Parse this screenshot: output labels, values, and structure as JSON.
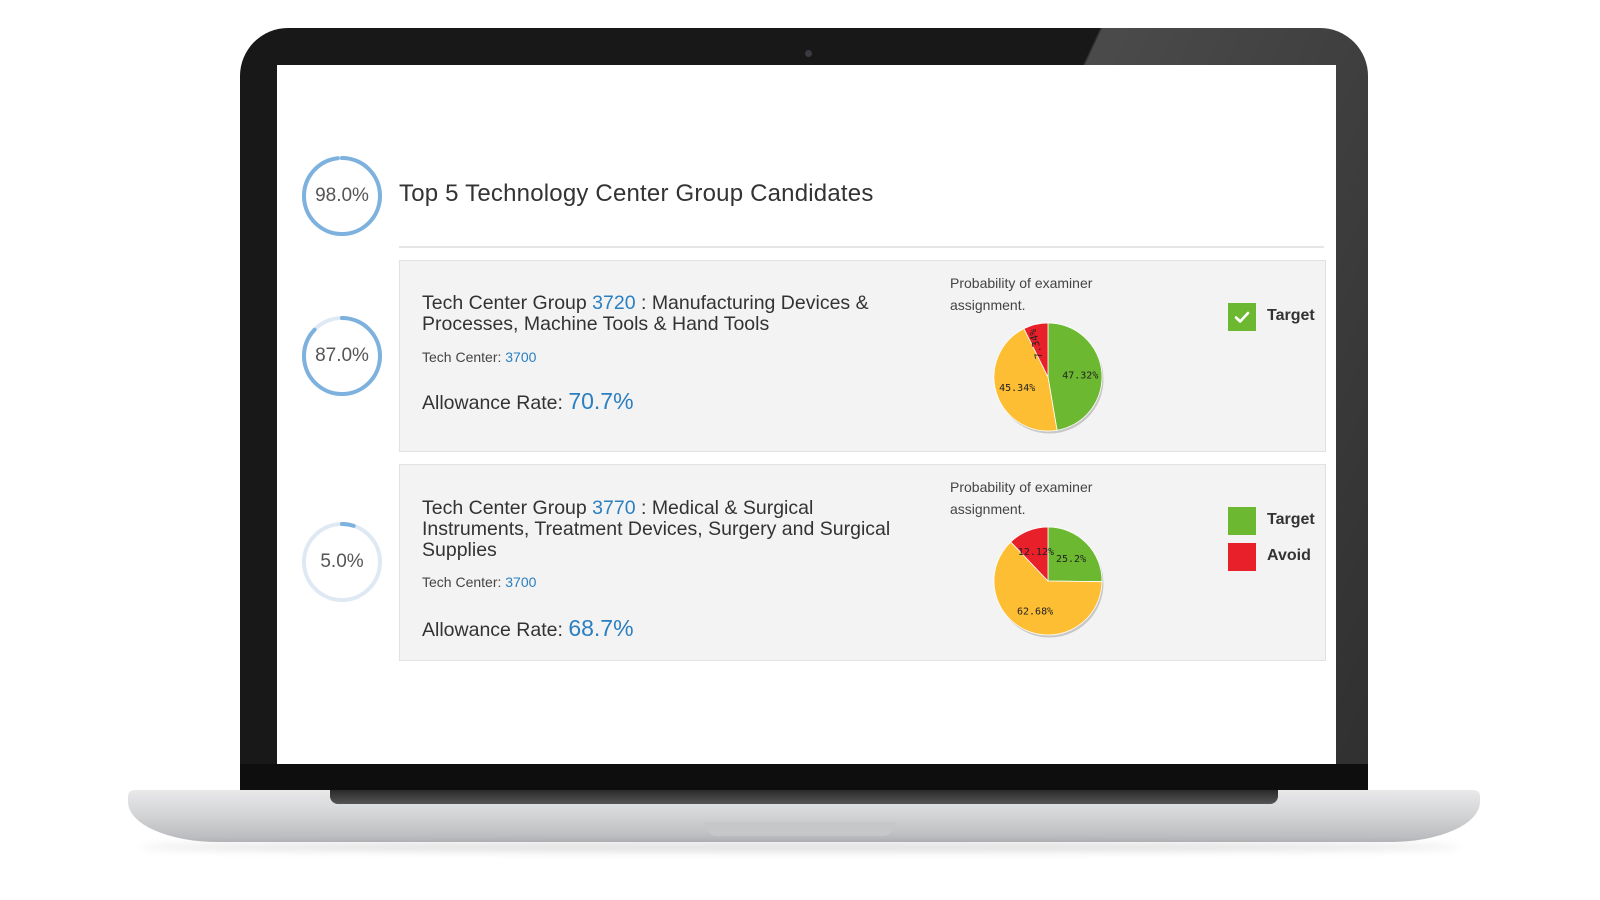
{
  "header": {
    "score": "98.0%",
    "score_fraction": 0.98,
    "title": "Top 5 Technology Center Group Candidates"
  },
  "colors": {
    "ring": "#7db1de",
    "ring_track": "#dfe9f3",
    "link": "#2a7fc1",
    "target_green": "#6cb830",
    "avoid_red": "#e8202a",
    "neutral_yellow": "#fdbe33"
  },
  "cards": [
    {
      "score": "87.0%",
      "score_fraction": 0.87,
      "title_prefix": "Tech Center Group ",
      "group_number": "3720",
      "title_suffix": " : Manufacturing Devices & Processes, Machine Tools & Hand Tools",
      "tech_center_label": "Tech Center: ",
      "tech_center_number": "3700",
      "allowance_label": "Allowance Rate: ",
      "allowance_value": "70.7%",
      "probability_label": "Probability of examiner assignment.",
      "legend": [
        {
          "label": "Target",
          "color": "#6cb830",
          "icon": "check-icon"
        }
      ],
      "chart_data": {
        "type": "pie",
        "slices": [
          {
            "label": "47.32%",
            "value": 47.32,
            "color": "#6cb830"
          },
          {
            "label": "45.34%",
            "value": 45.34,
            "color": "#fdbe33"
          },
          {
            "label": "7.34%",
            "value": 7.34,
            "color": "#e8202a"
          }
        ]
      }
    },
    {
      "score": "5.0%",
      "score_fraction": 0.05,
      "title_prefix": "Tech Center Group ",
      "group_number": "3770",
      "title_suffix": " : Medical & Surgical Instruments, Treatment Devices, Surgery and Surgical Supplies",
      "tech_center_label": "Tech Center: ",
      "tech_center_number": "3700",
      "allowance_label": "Allowance Rate: ",
      "allowance_value": "68.7%",
      "probability_label": "Probability of examiner assignment.",
      "legend": [
        {
          "label": "Target",
          "color": "#6cb830",
          "icon": ""
        },
        {
          "label": "Avoid",
          "color": "#e8202a",
          "icon": ""
        }
      ],
      "chart_data": {
        "type": "pie",
        "slices": [
          {
            "label": "25.2%",
            "value": 25.2,
            "color": "#6cb830"
          },
          {
            "label": "62.68%",
            "value": 62.68,
            "color": "#fdbe33"
          },
          {
            "label": "12.12%",
            "value": 12.12,
            "color": "#e8202a"
          }
        ]
      }
    }
  ]
}
